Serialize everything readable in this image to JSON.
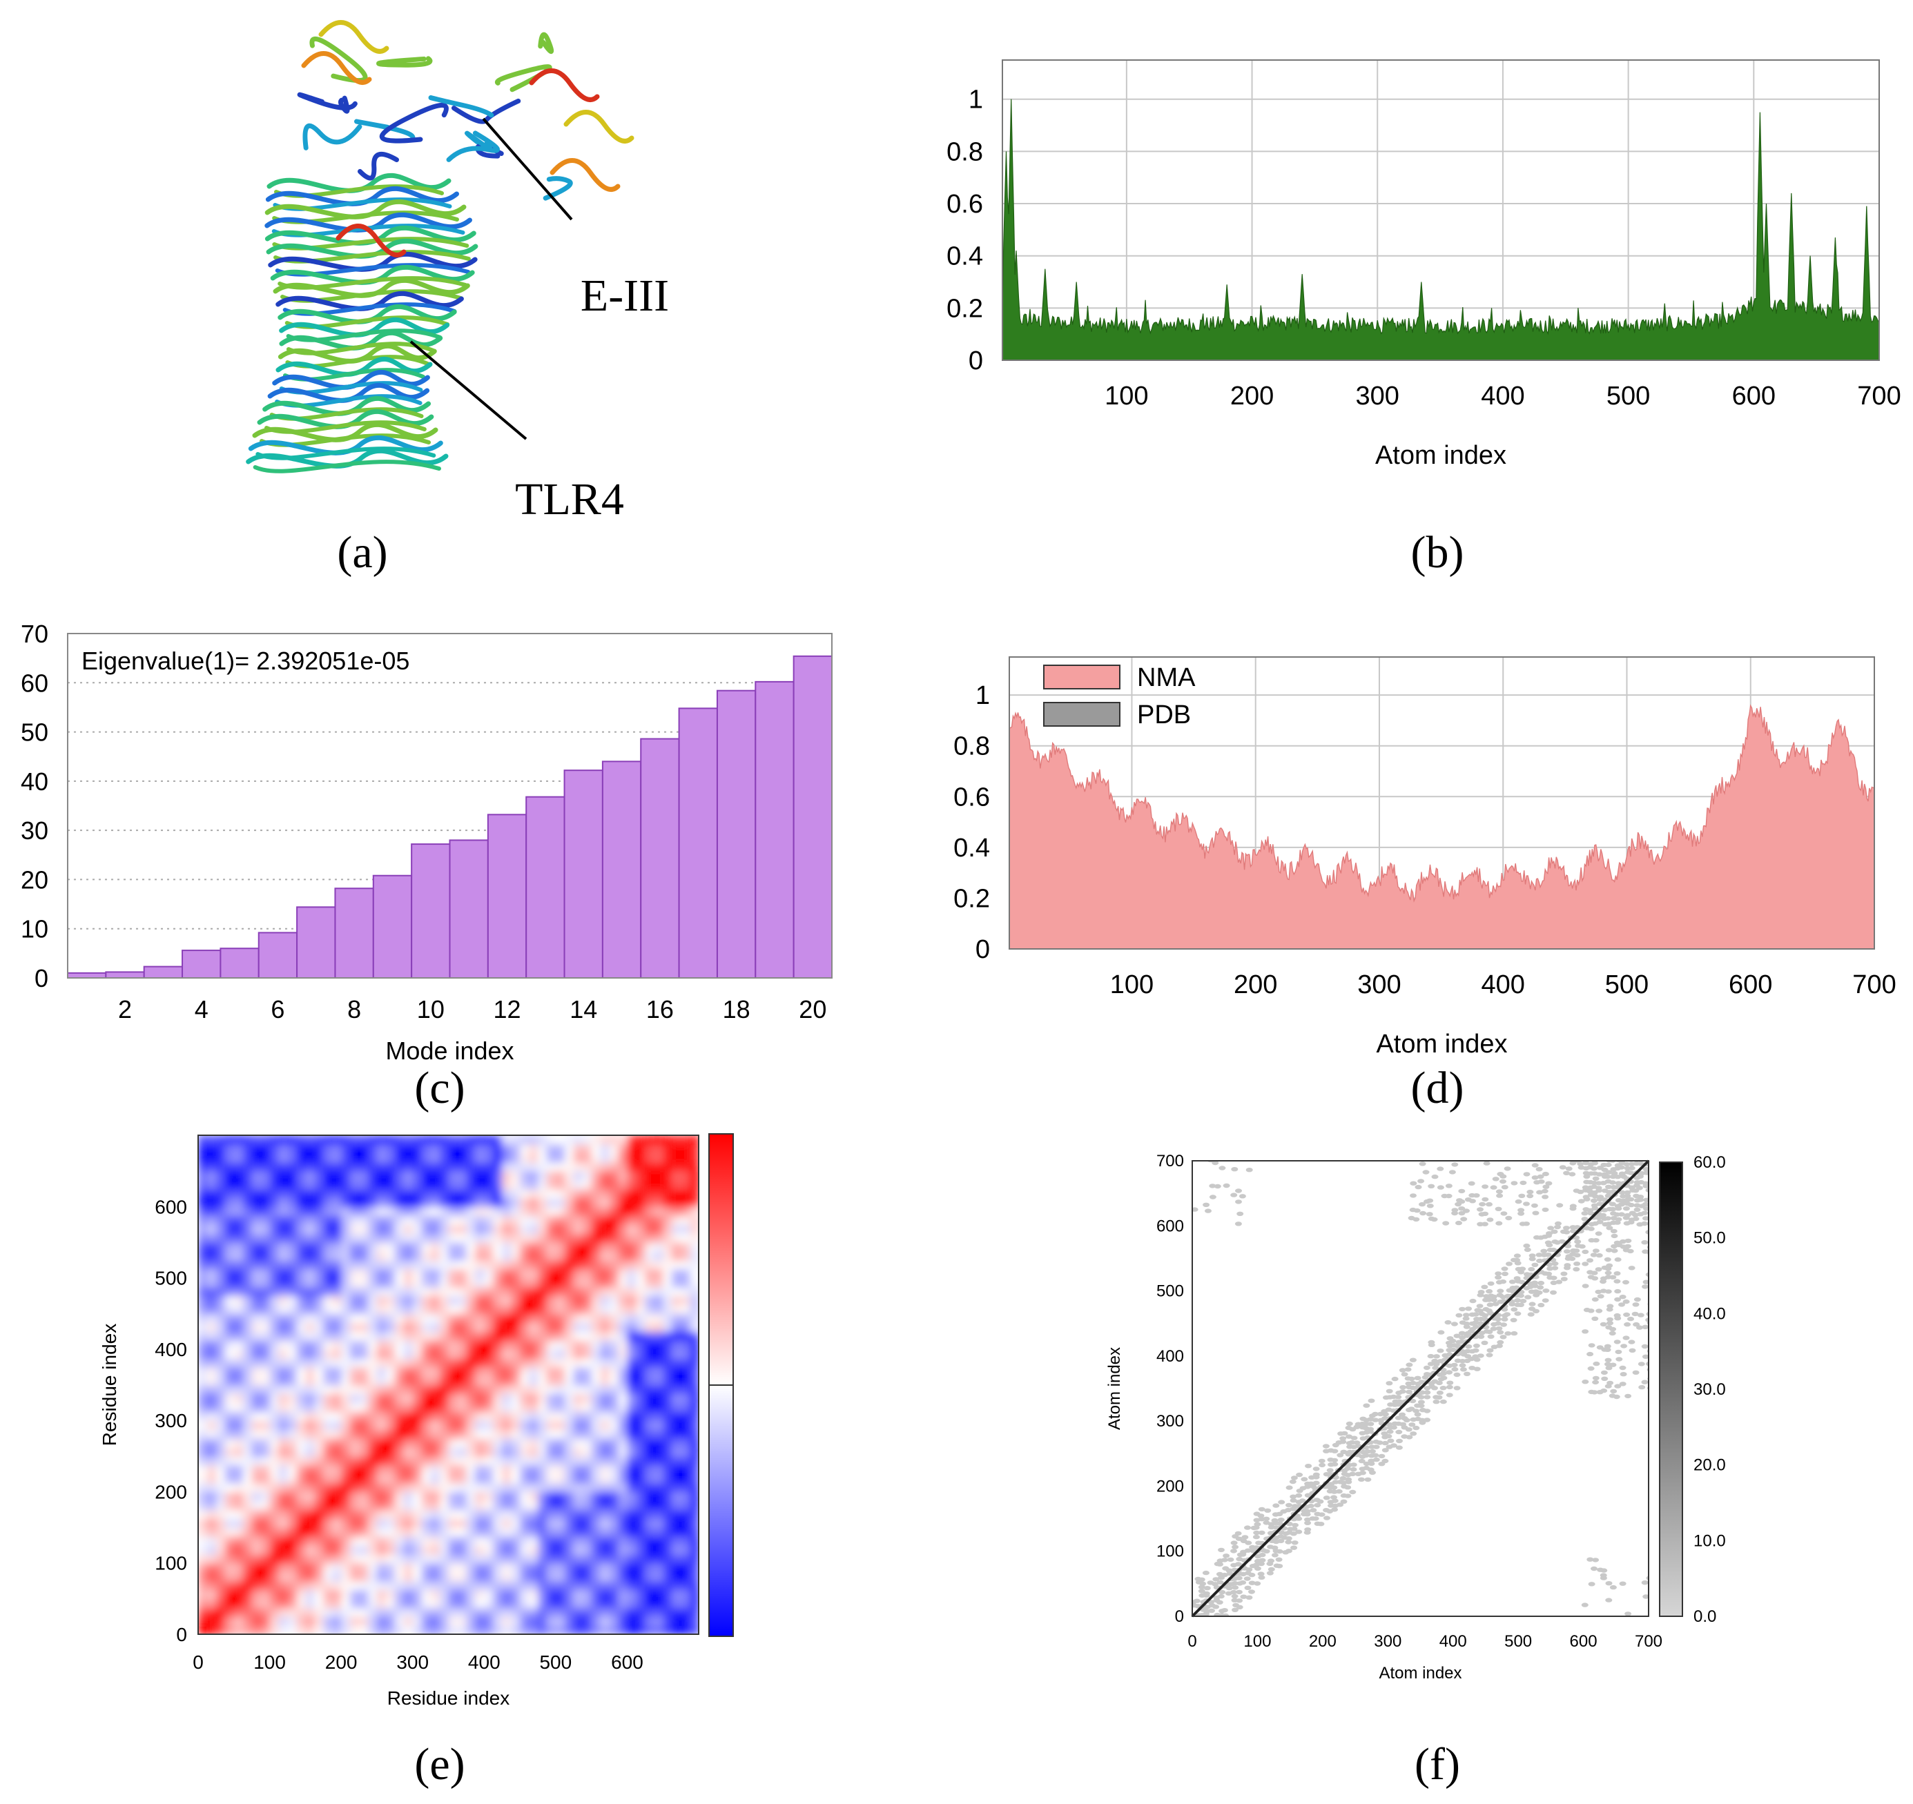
{
  "panels": {
    "a": {
      "caption": "(a)",
      "labels": [
        "E-III",
        "TLR4"
      ]
    },
    "b": {
      "caption": "(b)"
    },
    "c": {
      "caption": "(c)"
    },
    "d": {
      "caption": "(d)"
    },
    "e": {
      "caption": "(e)"
    },
    "f": {
      "caption": "(f)"
    }
  },
  "chart_data": [
    {
      "id": "b",
      "type": "area",
      "xlabel": "Atom index",
      "ylabel": "",
      "xlim": [
        1,
        700
      ],
      "ylim": [
        0,
        1.15
      ],
      "xticks": [
        100,
        200,
        300,
        400,
        500,
        600,
        700
      ],
      "yticks": [
        0,
        0.2,
        0.4,
        0.6,
        0.8,
        1
      ],
      "grid": true,
      "color": "#2e7d1e",
      "profile": {
        "baseline_x": [
          1,
          50,
          100,
          200,
          300,
          400,
          500,
          580,
          600,
          650,
          700
        ],
        "baseline_y": [
          0.15,
          0.13,
          0.12,
          0.13,
          0.12,
          0.12,
          0.12,
          0.14,
          0.2,
          0.18,
          0.15
        ],
        "peaks_x": [
          4,
          8,
          12,
          35,
          60,
          180,
          240,
          335,
          605,
          610,
          630,
          645,
          665,
          690
        ],
        "peaks_y": [
          0.8,
          1.0,
          0.42,
          0.35,
          0.3,
          0.29,
          0.33,
          0.3,
          0.95,
          0.6,
          0.64,
          0.4,
          0.47,
          0.57
        ]
      }
    },
    {
      "id": "c",
      "type": "bar",
      "annotation": "Eigenvalue(1)= 2.392051e-05",
      "xlabel": "Mode index",
      "ylabel": "",
      "categories": [
        1,
        2,
        3,
        4,
        5,
        6,
        7,
        8,
        9,
        10,
        11,
        12,
        13,
        14,
        15,
        16,
        17,
        18,
        19,
        20
      ],
      "values": [
        1,
        1.2,
        2.3,
        5.6,
        6.0,
        9.2,
        14.4,
        18.2,
        20.8,
        27.2,
        28.0,
        33.2,
        36.8,
        42.2,
        44.0,
        48.6,
        54.8,
        58.4,
        60.2,
        65.4
      ],
      "xticks": [
        2,
        4,
        6,
        8,
        10,
        12,
        14,
        16,
        18,
        20
      ],
      "yticks": [
        0,
        10,
        20,
        30,
        40,
        50,
        60,
        70
      ],
      "ylim": [
        0,
        70
      ],
      "color": "#c88ce8",
      "grid": "horizontal-dotted"
    },
    {
      "id": "d",
      "type": "area",
      "xlabel": "Atom index",
      "ylabel": "",
      "xlim": [
        1,
        700
      ],
      "ylim": [
        0,
        1.15
      ],
      "xticks": [
        100,
        200,
        300,
        400,
        500,
        600,
        700
      ],
      "yticks": [
        0,
        0.2,
        0.4,
        0.6,
        0.8,
        1
      ],
      "grid": true,
      "legend": [
        "NMA",
        "PDB"
      ],
      "legend_colors": [
        "#f4a0a0",
        "#9a9a9a"
      ],
      "legend_position": "top-left",
      "color": "#f4a0a0",
      "profile": {
        "x": [
          1,
          10,
          30,
          60,
          100,
          150,
          200,
          250,
          300,
          350,
          400,
          450,
          500,
          550,
          580,
          600,
          620,
          650,
          670,
          700
        ],
        "y": [
          0.88,
          0.85,
          0.78,
          0.68,
          0.55,
          0.45,
          0.38,
          0.32,
          0.27,
          0.26,
          0.28,
          0.3,
          0.36,
          0.45,
          0.62,
          0.92,
          0.8,
          0.72,
          0.85,
          0.6
        ]
      }
    },
    {
      "id": "e",
      "type": "heatmap",
      "xlabel": "Residue index",
      "ylabel": "Residue index",
      "xticks": [
        0,
        100,
        200,
        300,
        400,
        500,
        600
      ],
      "yticks": [
        0,
        100,
        200,
        300,
        400,
        500,
        600
      ],
      "range": [
        0,
        700
      ],
      "colormap": [
        "#0000ff",
        "#ffffff",
        "#ff0000"
      ]
    },
    {
      "id": "f",
      "type": "heatmap",
      "xlabel": "Atom index",
      "ylabel": "Atom index",
      "xticks": [
        0,
        100,
        200,
        300,
        400,
        500,
        600,
        700
      ],
      "yticks": [
        0,
        100,
        200,
        300,
        400,
        500,
        600,
        700
      ],
      "range": [
        0,
        700
      ],
      "colorbar_ticks": [
        "0.0",
        "10.0",
        "20.0",
        "30.0",
        "40.0",
        "50.0",
        "60.0"
      ],
      "colorbar_range": [
        0,
        60
      ],
      "colormap": [
        "#d6d6d6",
        "#000000"
      ]
    }
  ]
}
